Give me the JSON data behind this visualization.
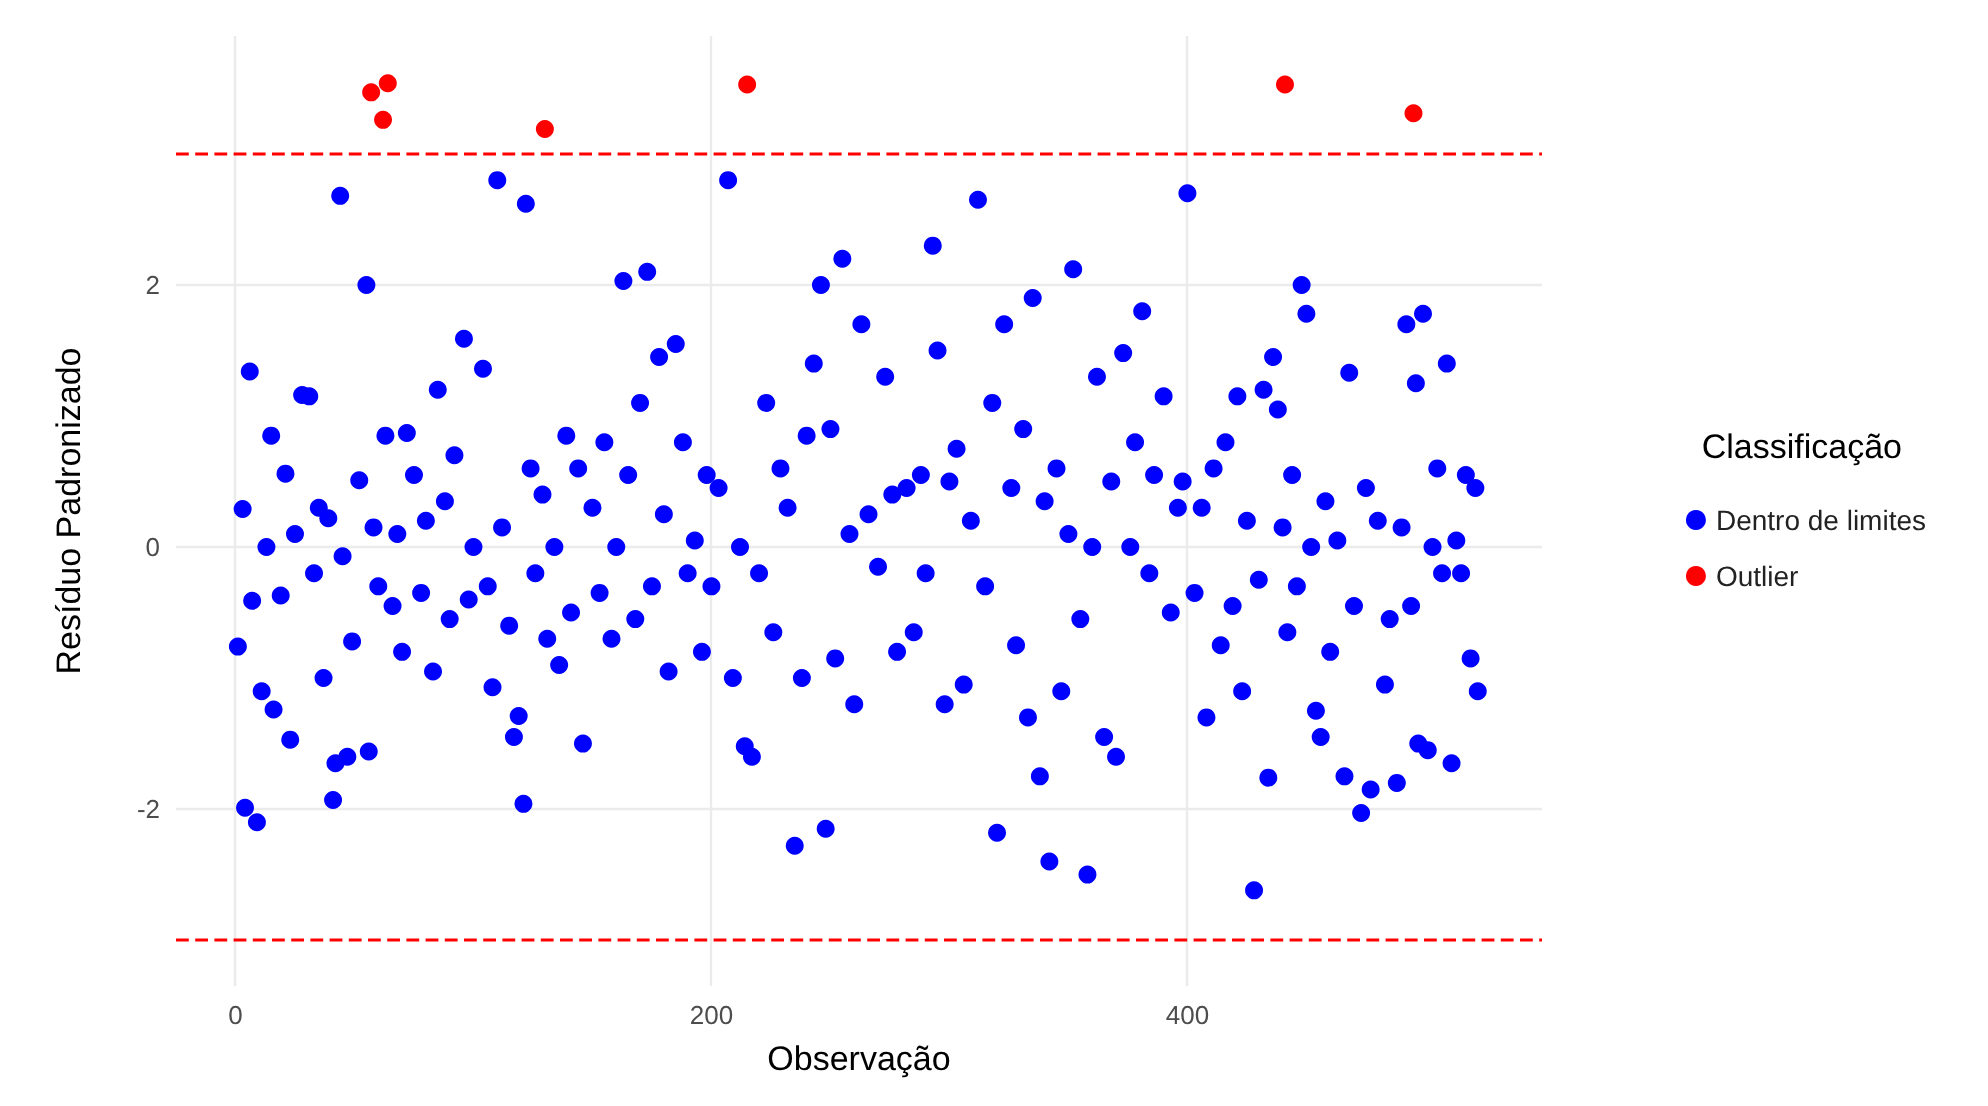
{
  "chart_data": {
    "type": "scatter",
    "xlabel": "Observação",
    "ylabel": "Resíduo Padronizado",
    "legend_title": "Classificação",
    "legend": "right",
    "grid": true,
    "marker": "circle",
    "xlim": [
      -25,
      549
    ],
    "ylim": [
      -3.35,
      3.9
    ],
    "xticks": [
      0,
      200,
      400
    ],
    "yticks": [
      -2,
      0,
      2
    ],
    "ref_lines": [
      {
        "axis": "y",
        "value": 3,
        "color": "#ff0000",
        "line_style": "dashed"
      },
      {
        "axis": "y",
        "value": -3,
        "color": "#ff0000",
        "line_style": "dashed"
      }
    ],
    "series": [
      {
        "name": "Dentro de limites",
        "color": "#0000ff",
        "x": [
          1,
          3,
          4,
          6,
          7,
          9,
          11,
          13,
          15,
          16,
          19,
          21,
          23,
          25,
          28,
          31,
          33,
          35,
          37,
          39,
          41,
          42,
          44,
          45,
          47,
          49,
          52,
          55,
          56,
          58,
          60,
          63,
          66,
          68,
          70,
          72,
          75,
          78,
          80,
          83,
          85,
          88,
          90,
          92,
          96,
          98,
          100,
          104,
          106,
          108,
          110,
          112,
          115,
          117,
          119,
          121,
          122,
          124,
          126,
          129,
          131,
          134,
          136,
          139,
          141,
          144,
          146,
          150,
          153,
          155,
          158,
          160,
          163,
          165,
          168,
          170,
          173,
          175,
          178,
          180,
          182,
          185,
          188,
          190,
          193,
          196,
          198,
          200,
          203,
          207,
          209,
          212,
          214,
          217,
          220,
          223,
          226,
          229,
          232,
          235,
          238,
          240,
          243,
          246,
          248,
          250,
          252,
          255,
          258,
          260,
          263,
          266,
          270,
          273,
          276,
          278,
          282,
          285,
          288,
          290,
          293,
          295,
          298,
          300,
          303,
          306,
          309,
          312,
          315,
          318,
          320,
          323,
          326,
          328,
          331,
          333,
          335,
          338,
          340,
          342,
          345,
          347,
          350,
          352,
          355,
          358,
          360,
          362,
          365,
          368,
          370,
          373,
          376,
          378,
          381,
          384,
          386,
          390,
          393,
          396,
          398,
          400,
          403,
          406,
          408,
          411,
          414,
          416,
          419,
          421,
          423,
          425,
          428,
          430,
          432,
          434,
          436,
          438,
          440,
          442,
          444,
          446,
          448,
          450,
          452,
          454,
          456,
          458,
          460,
          463,
          466,
          468,
          470,
          473,
          475,
          477,
          480,
          483,
          485,
          488,
          490,
          492,
          494,
          496,
          497,
          499,
          501,
          503,
          505,
          507,
          509,
          511,
          513,
          515,
          517,
          519,
          521,
          522
        ],
        "values": [
          -0.76,
          0.29,
          -1.99,
          1.34,
          -0.41,
          -2.1,
          -1.1,
          0.0,
          0.85,
          -1.24,
          -0.37,
          0.56,
          -1.47,
          0.1,
          1.16,
          1.15,
          -0.2,
          0.3,
          -1.0,
          0.22,
          -1.93,
          -1.65,
          2.68,
          -0.07,
          -1.6,
          -0.72,
          0.51,
          2.0,
          -1.56,
          0.15,
          -0.3,
          0.85,
          -0.45,
          0.1,
          -0.8,
          0.87,
          0.55,
          -0.35,
          0.2,
          -0.95,
          1.2,
          0.35,
          -0.55,
          0.7,
          1.59,
          -0.4,
          0.0,
          1.36,
          -0.3,
          -1.07,
          2.8,
          0.15,
          -0.6,
          -1.45,
          -1.29,
          -1.96,
          2.62,
          0.6,
          -0.2,
          0.4,
          -0.7,
          0.0,
          -0.9,
          0.85,
          -0.5,
          0.6,
          -1.5,
          0.3,
          -0.35,
          0.8,
          -0.7,
          0.0,
          2.03,
          0.55,
          -0.55,
          1.1,
          2.1,
          -0.3,
          1.45,
          0.25,
          -0.95,
          1.55,
          0.8,
          -0.2,
          0.05,
          -0.8,
          0.55,
          -0.3,
          0.45,
          2.8,
          -1.0,
          0.0,
          -1.52,
          -1.6,
          -0.2,
          1.1,
          -0.65,
          0.6,
          0.3,
          -2.28,
          -1.0,
          0.85,
          1.4,
          2.0,
          -2.15,
          0.9,
          -0.85,
          2.2,
          0.1,
          -1.2,
          1.7,
          0.25,
          -0.15,
          1.3,
          0.4,
          -0.8,
          0.45,
          -0.65,
          0.55,
          -0.2,
          2.3,
          1.5,
          -1.2,
          0.5,
          0.75,
          -1.05,
          0.2,
          2.65,
          -0.3,
          1.1,
          -2.18,
          1.7,
          0.45,
          -0.75,
          0.9,
          -1.3,
          1.9,
          -1.75,
          0.35,
          -2.4,
          0.6,
          -1.1,
          0.1,
          2.12,
          -0.55,
          -2.5,
          0.0,
          1.3,
          -1.45,
          0.5,
          -1.6,
          1.48,
          0.0,
          0.8,
          1.8,
          -0.2,
          0.55,
          1.15,
          -0.5,
          0.3,
          0.5,
          2.7,
          -0.35,
          0.3,
          -1.3,
          0.6,
          -0.75,
          0.8,
          -0.45,
          1.15,
          -1.1,
          0.2,
          -2.62,
          -0.25,
          1.2,
          -1.76,
          1.45,
          1.05,
          0.15,
          -0.65,
          0.55,
          -0.3,
          2.0,
          1.78,
          0.0,
          -1.25,
          -1.45,
          0.35,
          -0.8,
          0.05,
          -1.75,
          1.33,
          -0.45,
          -2.03,
          0.45,
          -1.85,
          0.2,
          -1.05,
          -0.55,
          -1.8,
          0.15,
          1.7,
          -0.45,
          1.25,
          -1.5,
          1.78,
          -1.55,
          0.0,
          0.6,
          -0.2,
          1.4,
          -1.65,
          0.05,
          -0.2,
          0.55,
          -0.85,
          0.45,
          -1.1
        ]
      },
      {
        "name": "Outlier",
        "color": "#ff0000",
        "x": [
          57,
          62,
          64,
          130,
          215,
          441,
          495
        ],
        "values": [
          3.47,
          3.26,
          3.54,
          3.19,
          3.53,
          3.53,
          3.31
        ]
      }
    ]
  }
}
